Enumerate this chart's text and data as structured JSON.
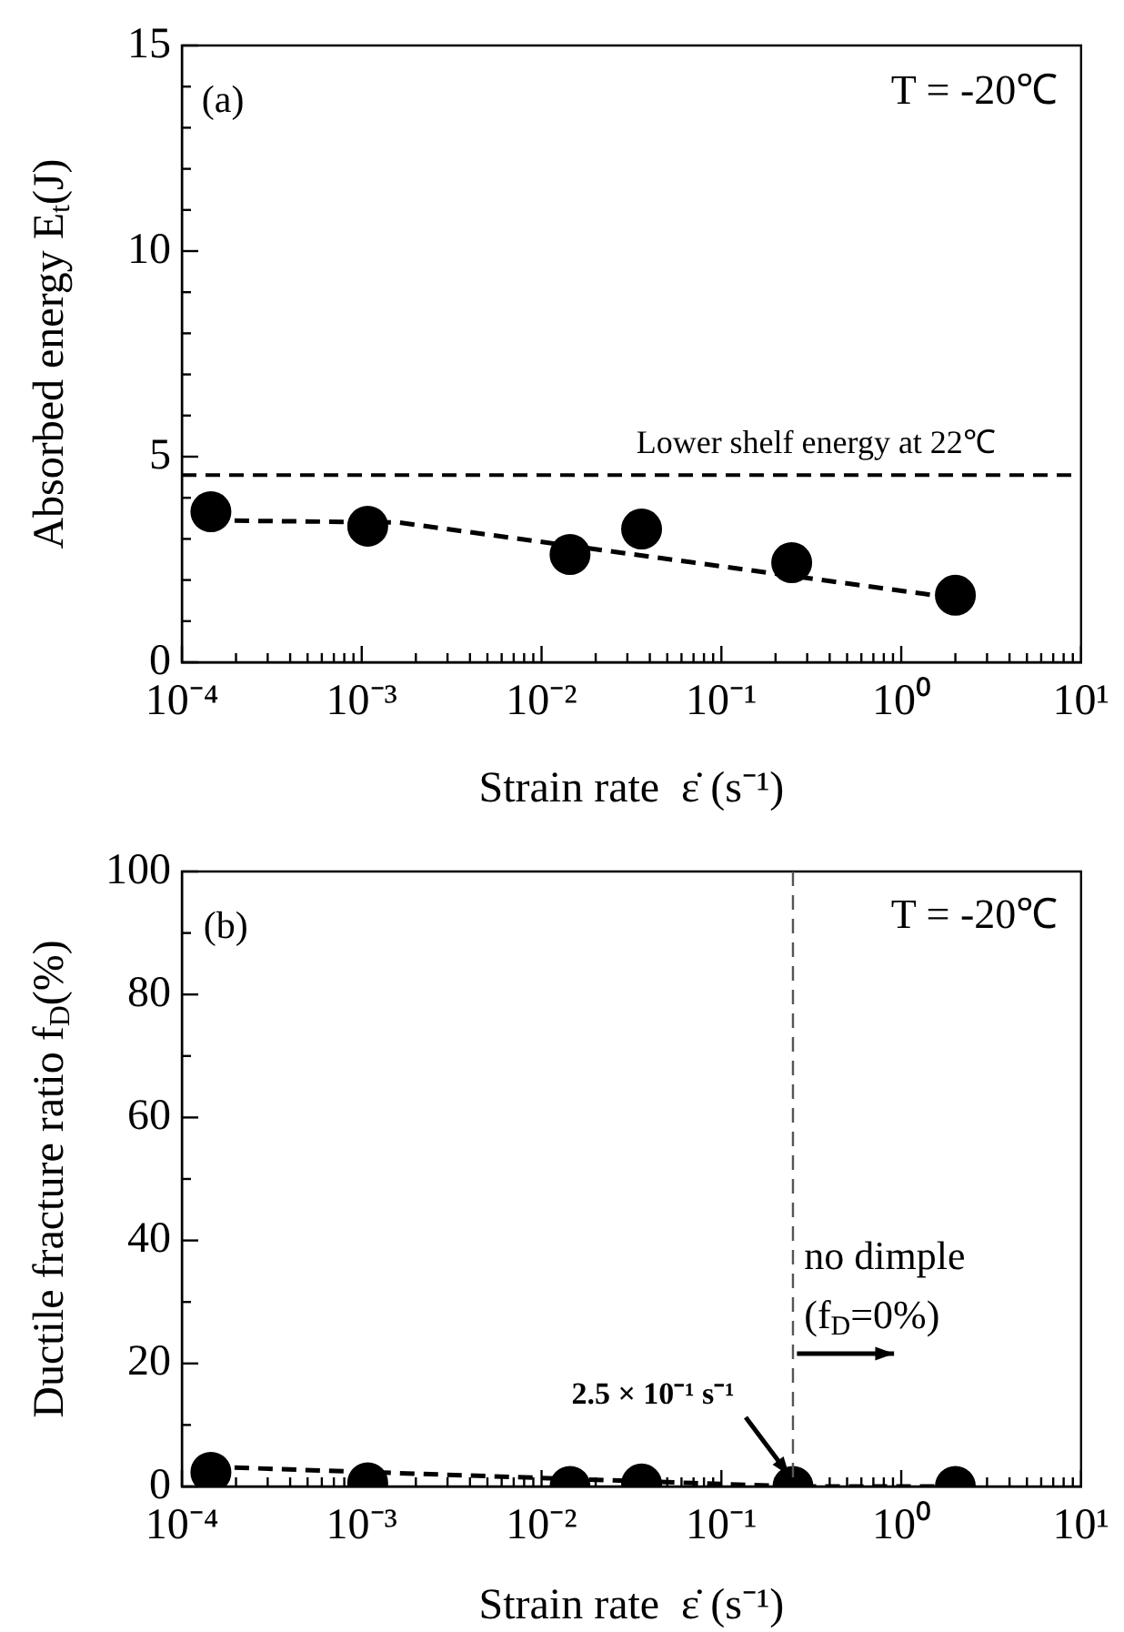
{
  "chart_data": [
    {
      "type": "scatter",
      "xlabel": "Strain rate  ε̇ (s⁻¹)",
      "ylabel": "Absorbed energy E$_{t}$(J)",
      "log": "x",
      "legend": false,
      "grid": false,
      "marker": "circle",
      "xlim": [
        0.0001,
        10
      ],
      "xticks": [
        {
          "value": 0.0001,
          "label": "10⁻⁴"
        },
        {
          "value": 0.001,
          "label": "10⁻³"
        },
        {
          "value": 0.01,
          "label": "10⁻²"
        },
        {
          "value": 0.1,
          "label": "10⁻¹"
        },
        {
          "value": 1,
          "label": "10⁰"
        },
        {
          "value": 10,
          "label": "10¹"
        }
      ],
      "ylim": [
        0,
        15
      ],
      "yticks": [
        0,
        {
          "value": 1,
          "label": null
        },
        {
          "value": 2,
          "label": null
        },
        {
          "value": 3,
          "label": null
        },
        {
          "value": 4,
          "label": null
        },
        5,
        {
          "value": 6,
          "label": null
        },
        {
          "value": 7,
          "label": null
        },
        {
          "value": 8,
          "label": null
        },
        {
          "value": 9,
          "label": null
        },
        10,
        {
          "value": 11,
          "label": null
        },
        {
          "value": 12,
          "label": null
        },
        {
          "value": 13,
          "label": null
        },
        {
          "value": 14,
          "label": null
        },
        15
      ],
      "series": [
        {
          "type": "scatter",
          "color": "#000000",
          "x": [
            0.000145,
            0.00108,
            0.0144,
            0.036,
            0.246,
            2.0
          ],
          "values": [
            3.66,
            3.31,
            2.62,
            3.24,
            2.42,
            1.63
          ]
        },
        {
          "type": "line",
          "color": "#000000",
          "line_style": "dashed",
          "marker": "none",
          "x": [
            0.000145,
            0.0016,
            2.0
          ],
          "values": [
            3.45,
            3.4,
            1.56
          ]
        }
      ],
      "ref_lines": [
        {
          "axis": "y",
          "value": 4.55,
          "label": "Lower shelf energy at 22℃",
          "color": "#000000",
          "line_style": "dashed"
        }
      ],
      "annotations": [
        "(a)",
        "T = -20℃"
      ]
    },
    {
      "type": "scatter",
      "xlabel": "Strain rate  ε̇ (s⁻¹)",
      "ylabel": "Ductile fracture ratio f$_{D}$(%)",
      "log": "x",
      "legend": false,
      "grid": false,
      "marker": "circle",
      "xlim": [
        0.0001,
        10
      ],
      "xticks": [
        {
          "value": 0.0001,
          "label": "10⁻⁴"
        },
        {
          "value": 0.001,
          "label": "10⁻³"
        },
        {
          "value": 0.01,
          "label": "10⁻²"
        },
        {
          "value": 0.1,
          "label": "10⁻¹"
        },
        {
          "value": 1,
          "label": "10⁰"
        },
        {
          "value": 10,
          "label": "10¹"
        }
      ],
      "ylim": [
        0,
        100
      ],
      "yticks": [
        0,
        {
          "value": 10,
          "label": null
        },
        20,
        {
          "value": 30,
          "label": null
        },
        40,
        {
          "value": 50,
          "label": null
        },
        60,
        {
          "value": 70,
          "label": null
        },
        80,
        {
          "value": 90,
          "label": null
        },
        100
      ],
      "series": [
        {
          "type": "scatter",
          "color": "#000000",
          "x": [
            0.000145,
            0.00108,
            0.0144,
            0.036,
            0.25,
            2.0
          ],
          "values": [
            2.3,
            0.6,
            0,
            0.4,
            0,
            0
          ]
        },
        {
          "type": "line",
          "color": "#000000",
          "line_style": "dashed",
          "marker": "none",
          "x": [
            0.000145,
            0.25,
            2.0
          ],
          "values": [
            3.2,
            0,
            0
          ]
        }
      ],
      "ref_lines": [
        {
          "axis": "x",
          "value": 0.25,
          "color": "#555555",
          "line_style": "dashed"
        }
      ],
      "annotations": [
        "(b)",
        "T = -20℃",
        "no dimple",
        "(f$_{D}$=0%)",
        {
          "text": "2.5 × 10⁻¹ s⁻¹",
          "x": 0.25,
          "y": 0
        }
      ]
    }
  ]
}
